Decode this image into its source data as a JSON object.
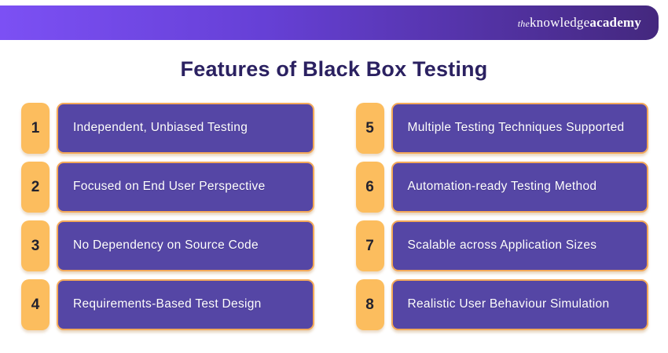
{
  "logo": {
    "the": "the",
    "knowledge": "knowledge",
    "academy": "academy"
  },
  "title": "Features of Black Box Testing",
  "items": [
    {
      "number": "1",
      "label": "Independent, Unbiased Testing"
    },
    {
      "number": "2",
      "label": "Focused on End User Perspective"
    },
    {
      "number": "3",
      "label": "No Dependency on Source Code"
    },
    {
      "number": "4",
      "label": "Requirements-Based Test Design"
    },
    {
      "number": "5",
      "label": "Multiple Testing Techniques Supported"
    },
    {
      "number": "6",
      "label": "Automation-ready Testing Method"
    },
    {
      "number": "7",
      "label": "Scalable across Application Sizes"
    },
    {
      "number": "8",
      "label": "Realistic User Behaviour Simulation"
    }
  ],
  "colors": {
    "banner_gradient_start": "#7C50F4",
    "banner_gradient_end": "#44287E",
    "title_text": "#2B2161",
    "badge_orange": "#FCBD5E",
    "card_purple": "#5546A5",
    "card_border_orange": "#F3A95A",
    "card_text": "#FFFFFF"
  }
}
